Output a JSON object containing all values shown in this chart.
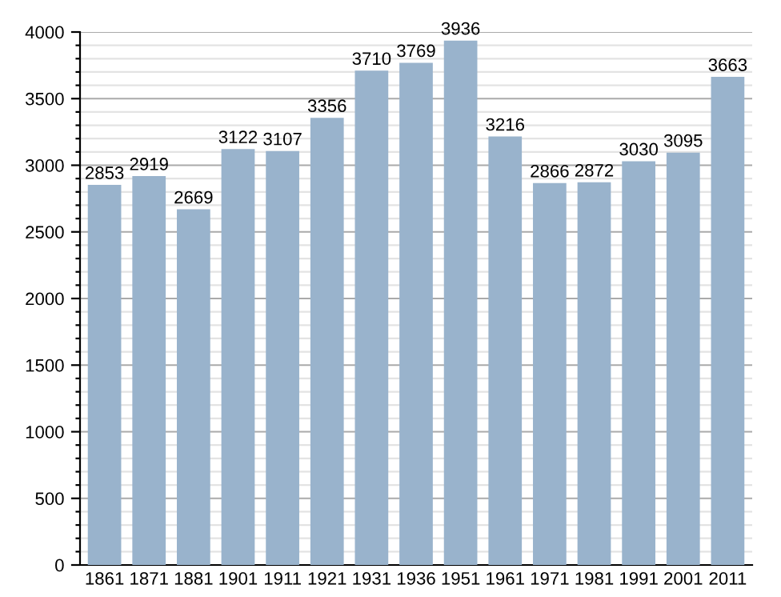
{
  "chart_data": {
    "type": "bar",
    "categories": [
      "1861",
      "1871",
      "1881",
      "1901",
      "1911",
      "1921",
      "1931",
      "1936",
      "1951",
      "1961",
      "1971",
      "1981",
      "1991",
      "2001",
      "2011"
    ],
    "values": [
      2853,
      2919,
      2669,
      3122,
      3107,
      3356,
      3710,
      3769,
      3936,
      3216,
      2866,
      2872,
      3030,
      3095,
      3663
    ],
    "color": "#99b3cc",
    "ylim": [
      0,
      4000
    ],
    "yticks": [
      0,
      {
        "value": 100,
        "label": null
      },
      {
        "value": 200,
        "label": null
      },
      {
        "value": 300,
        "label": null
      },
      {
        "value": 400,
        "label": null
      },
      500,
      {
        "value": 600,
        "label": null
      },
      {
        "value": 700,
        "label": null
      },
      {
        "value": 800,
        "label": null
      },
      {
        "value": 900,
        "label": null
      },
      1000,
      {
        "value": 1100,
        "label": null
      },
      {
        "value": 1200,
        "label": null
      },
      {
        "value": 1300,
        "label": null
      },
      {
        "value": 1400,
        "label": null
      },
      1500,
      {
        "value": 1600,
        "label": null
      },
      {
        "value": 1700,
        "label": null
      },
      {
        "value": 1800,
        "label": null
      },
      {
        "value": 1900,
        "label": null
      },
      2000,
      {
        "value": 2100,
        "label": null
      },
      {
        "value": 2200,
        "label": null
      },
      {
        "value": 2300,
        "label": null
      },
      {
        "value": 2400,
        "label": null
      },
      2500,
      {
        "value": 2600,
        "label": null
      },
      {
        "value": 2700,
        "label": null
      },
      {
        "value": 2800,
        "label": null
      },
      {
        "value": 2900,
        "label": null
      },
      3000,
      {
        "value": 3100,
        "label": null
      },
      {
        "value": 3200,
        "label": null
      },
      {
        "value": 3300,
        "label": null
      },
      {
        "value": 3400,
        "label": null
      },
      3500,
      {
        "value": 3600,
        "label": null
      },
      {
        "value": 3700,
        "label": null
      },
      {
        "value": 3800,
        "label": null
      },
      {
        "value": 3900,
        "label": null
      },
      4000
    ],
    "grid": "y",
    "data_labels": true
  }
}
